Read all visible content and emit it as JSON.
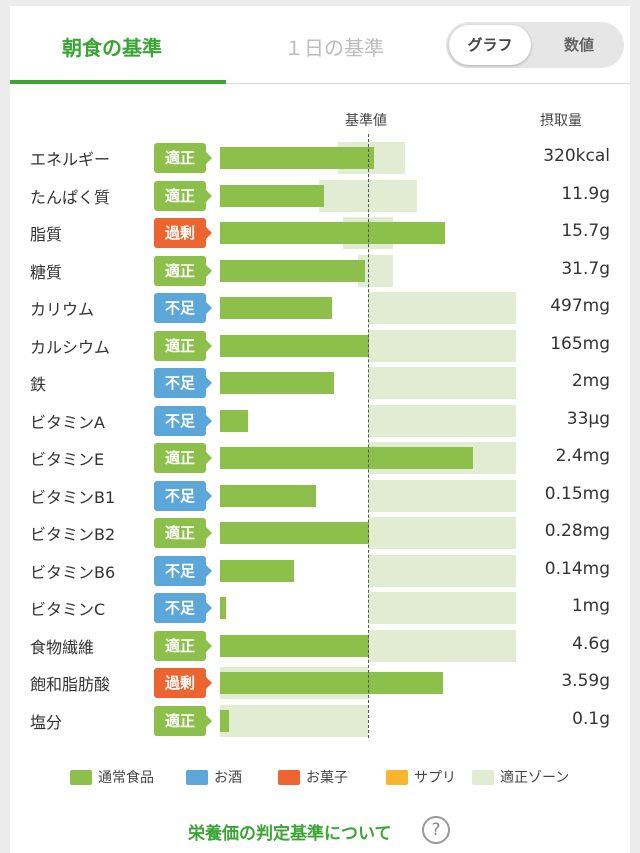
{
  "tabs": {
    "breakfast": "朝食の基準",
    "daily": "１日の基準"
  },
  "toggle": {
    "graph": "グラフ",
    "value": "数値"
  },
  "columns": {
    "kijun": "基準値",
    "intake": "摂取量"
  },
  "nutrients": [
    {
      "name": "エネルギー",
      "status": "適正",
      "status_type": "ok",
      "amount": "320kcal",
      "bar_pct": 104,
      "zone_from_pct": 80,
      "zone_to_pct": 125
    },
    {
      "name": "たんぱく質",
      "status": "適正",
      "status_type": "ok",
      "amount": "11.9g",
      "bar_pct": 70,
      "zone_from_pct": 67,
      "zone_to_pct": 133
    },
    {
      "name": "脂質",
      "status": "過剰",
      "status_type": "over",
      "amount": "15.7g",
      "bar_pct": 152,
      "zone_from_pct": 83,
      "zone_to_pct": 117
    },
    {
      "name": "糖質",
      "status": "適正",
      "status_type": "ok",
      "amount": "31.7g",
      "bar_pct": 98,
      "zone_from_pct": 93,
      "zone_to_pct": 117
    },
    {
      "name": "カリウム",
      "status": "不足",
      "status_type": "low",
      "amount": "497mg",
      "bar_pct": 76,
      "zone_from_pct": 100,
      "zone_to_pct": 200
    },
    {
      "name": "カルシウム",
      "status": "適正",
      "status_type": "ok",
      "amount": "165mg",
      "bar_pct": 101,
      "zone_from_pct": 100,
      "zone_to_pct": 200
    },
    {
      "name": "鉄",
      "status": "不足",
      "status_type": "low",
      "amount": "2mg",
      "bar_pct": 77,
      "zone_from_pct": 100,
      "zone_to_pct": 200
    },
    {
      "name": "ビタミンA",
      "status": "不足",
      "status_type": "low",
      "amount": "33μg",
      "bar_pct": 19,
      "zone_from_pct": 100,
      "zone_to_pct": 200
    },
    {
      "name": "ビタミンE",
      "status": "適正",
      "status_type": "ok",
      "amount": "2.4mg",
      "bar_pct": 171,
      "zone_from_pct": 100,
      "zone_to_pct": 200
    },
    {
      "name": "ビタミンB1",
      "status": "不足",
      "status_type": "low",
      "amount": "0.15mg",
      "bar_pct": 65,
      "zone_from_pct": 100,
      "zone_to_pct": 200
    },
    {
      "name": "ビタミンB2",
      "status": "適正",
      "status_type": "ok",
      "amount": "0.28mg",
      "bar_pct": 101,
      "zone_from_pct": 100,
      "zone_to_pct": 200
    },
    {
      "name": "ビタミンB6",
      "status": "不足",
      "status_type": "low",
      "amount": "0.14mg",
      "bar_pct": 50,
      "zone_from_pct": 100,
      "zone_to_pct": 200
    },
    {
      "name": "ビタミンC",
      "status": "不足",
      "status_type": "low",
      "amount": "1mg",
      "bar_pct": 4,
      "zone_from_pct": 100,
      "zone_to_pct": 200
    },
    {
      "name": "食物繊維",
      "status": "適正",
      "status_type": "ok",
      "amount": "4.6g",
      "bar_pct": 101,
      "zone_from_pct": 100,
      "zone_to_pct": 200
    },
    {
      "name": "飽和脂肪酸",
      "status": "過剰",
      "status_type": "over",
      "amount": "3.59g",
      "bar_pct": 151,
      "zone_from_pct": 0,
      "zone_to_pct": 100
    },
    {
      "name": "塩分",
      "status": "適正",
      "status_type": "ok",
      "amount": "0.1g",
      "bar_pct": 6,
      "zone_from_pct": 0,
      "zone_to_pct": 100
    }
  ],
  "legend": [
    {
      "label": "通常食品",
      "color": "#8cc04b"
    },
    {
      "label": "お酒",
      "color": "#5ba7d9"
    },
    {
      "label": "お菓子",
      "color": "#ec6531"
    },
    {
      "label": "サプリ",
      "color": "#f8b62d"
    },
    {
      "label": "適正ゾーン",
      "color": "#e2ecd3"
    }
  ],
  "footer": {
    "link": "栄養価の判定基準について",
    "help": "?"
  }
}
